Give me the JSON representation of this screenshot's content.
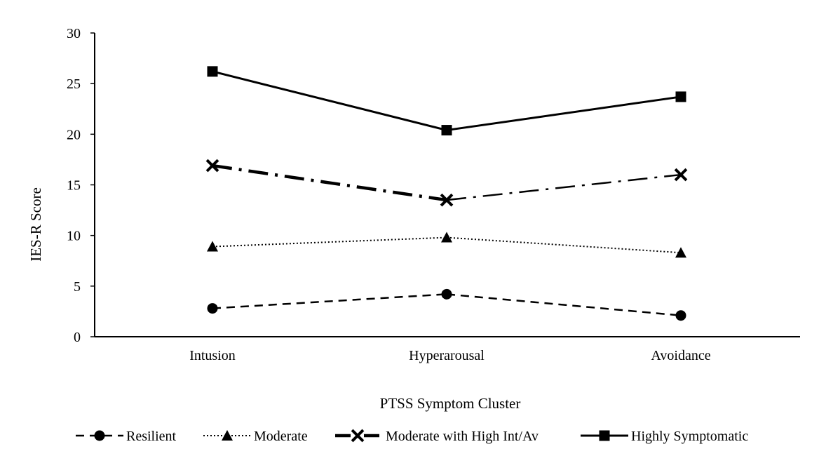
{
  "chart_data": {
    "type": "line",
    "title": "",
    "xlabel": "PTSS Symptom Cluster",
    "ylabel": "IES-R Score",
    "categories": [
      "Intusion",
      "Hyperarousal",
      "Avoidance"
    ],
    "ylim": [
      0,
      30
    ],
    "yticks": [
      0,
      5,
      10,
      15,
      20,
      25,
      30
    ],
    "grid": false,
    "legend_position": "bottom",
    "series": [
      {
        "name": "Resilient",
        "values": [
          2.8,
          4.2,
          2.1
        ],
        "marker": "circle",
        "line_style": "dashed",
        "color": "#000000"
      },
      {
        "name": "Moderate",
        "values": [
          8.9,
          9.8,
          8.3
        ],
        "marker": "triangle",
        "line_style": "dotted",
        "color": "#000000"
      },
      {
        "name": "Moderate with High Int/Av",
        "values": [
          16.9,
          13.5,
          16.0
        ],
        "marker": "x",
        "line_style": "dash-dot",
        "color": "#000000"
      },
      {
        "name": "Highly Symptomatic",
        "values": [
          26.2,
          20.4,
          23.7
        ],
        "marker": "square",
        "line_style": "solid",
        "color": "#000000"
      }
    ]
  }
}
